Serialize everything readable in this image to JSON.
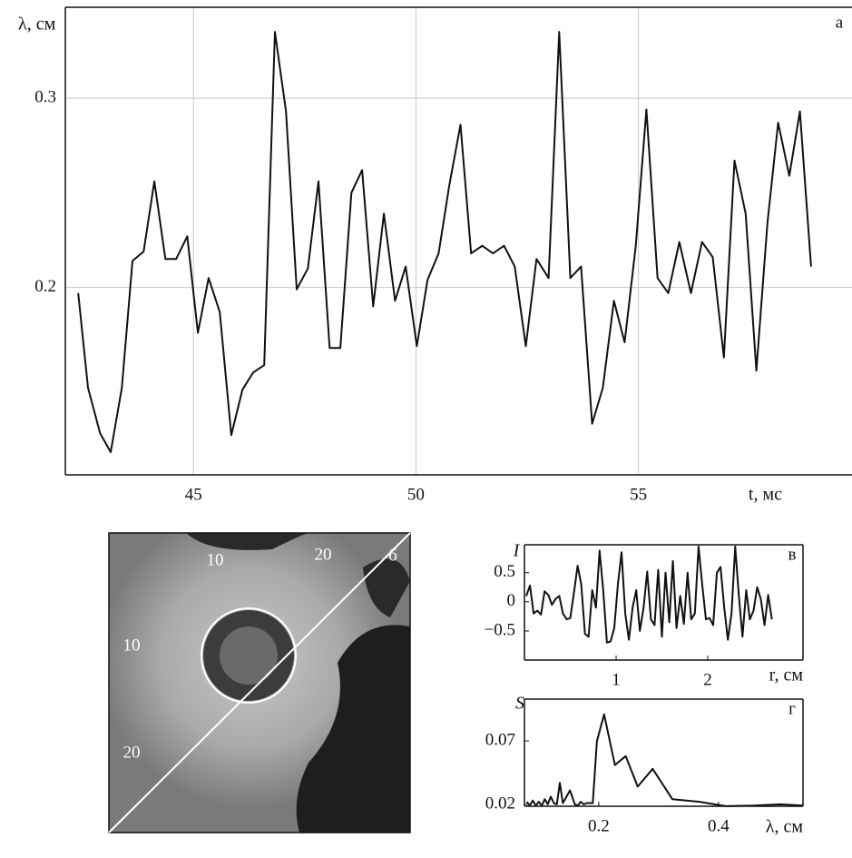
{
  "chart_data": [
    {
      "type": "line",
      "label": "а",
      "ylabel": "λ, см",
      "xlabel": "t, мс",
      "x": [
        42.41,
        42.63,
        42.9,
        43.14,
        43.39,
        43.63,
        43.88,
        44.12,
        44.37,
        44.61,
        44.86,
        45.1,
        45.34,
        45.59,
        45.85,
        46.1,
        46.34,
        46.59,
        46.83,
        47.08,
        47.32,
        47.57,
        47.81,
        48.06,
        48.3,
        48.55,
        48.79,
        49.04,
        49.28,
        49.53,
        49.77,
        50.02,
        50.26,
        50.51,
        50.75,
        51.0,
        51.24,
        51.49,
        51.73,
        51.98,
        52.22,
        52.47,
        52.71,
        52.98,
        53.22,
        53.47,
        53.71,
        53.96,
        54.2,
        54.45,
        54.69,
        54.94,
        55.18,
        55.43,
        55.67,
        55.92,
        56.18,
        56.43,
        56.67,
        56.92,
        57.16,
        57.41,
        57.65,
        57.9,
        58.14,
        58.39,
        58.63,
        58.88
      ],
      "values": [
        0.197,
        0.147,
        0.123,
        0.113,
        0.147,
        0.214,
        0.219,
        0.256,
        0.215,
        0.215,
        0.227,
        0.176,
        0.205,
        0.187,
        0.122,
        0.146,
        0.155,
        0.159,
        0.335,
        0.293,
        0.199,
        0.21,
        0.256,
        0.168,
        0.168,
        0.25,
        0.262,
        0.19,
        0.239,
        0.193,
        0.211,
        0.169,
        0.204,
        0.218,
        0.254,
        0.286,
        0.218,
        0.222,
        0.218,
        0.222,
        0.211,
        0.169,
        0.215,
        0.205,
        0.335,
        0.205,
        0.211,
        0.128,
        0.147,
        0.193,
        0.171,
        0.222,
        0.294,
        0.205,
        0.197,
        0.224,
        0.197,
        0.224,
        0.216,
        0.163,
        0.267,
        0.239,
        0.156,
        0.234,
        0.287,
        0.259,
        0.293,
        0.211
      ],
      "color": "#111111",
      "xlim": [
        42.12,
        59.8
      ],
      "ylim": [
        0.101,
        0.348
      ],
      "xticks": [
        45,
        50,
        55
      ],
      "yticks": [
        0.2,
        0.3
      ],
      "grid": true
    },
    {
      "type": "image",
      "label": "б",
      "top_labels": [
        "10",
        "20"
      ],
      "left_labels": [
        "10",
        "20"
      ]
    },
    {
      "type": "line",
      "label": "в",
      "ylabel": "I",
      "xlabel": "r, см",
      "x": [
        0.02,
        0.06,
        0.1,
        0.14,
        0.18,
        0.22,
        0.26,
        0.3,
        0.34,
        0.38,
        0.42,
        0.46,
        0.5,
        0.54,
        0.58,
        0.62,
        0.66,
        0.7,
        0.74,
        0.78,
        0.82,
        0.86,
        0.9,
        0.94,
        0.98,
        1.02,
        1.06,
        1.1,
        1.14,
        1.18,
        1.22,
        1.26,
        1.3,
        1.34,
        1.38,
        1.42,
        1.46,
        1.5,
        1.54,
        1.58,
        1.62,
        1.66,
        1.7,
        1.74,
        1.78,
        1.82,
        1.86,
        1.9,
        1.94,
        1.98,
        2.02,
        2.06,
        2.1,
        2.14,
        2.18,
        2.22,
        2.26,
        2.3,
        2.34,
        2.38,
        2.42,
        2.46,
        2.5,
        2.54,
        2.58,
        2.62,
        2.66,
        2.7
      ],
      "values": [
        0.1,
        0.28,
        -0.2,
        -0.15,
        -0.22,
        0.18,
        0.12,
        -0.05,
        0.05,
        0.1,
        -0.2,
        -0.3,
        -0.28,
        0.15,
        0.62,
        0.3,
        -0.55,
        -0.6,
        0.2,
        -0.1,
        0.88,
        0.2,
        -0.7,
        -0.68,
        -0.45,
        0.3,
        0.85,
        -0.2,
        -0.65,
        -0.1,
        0.2,
        -0.5,
        -0.1,
        0.52,
        -0.3,
        -0.4,
        0.55,
        -0.6,
        0.5,
        -0.35,
        0.7,
        -0.45,
        0.1,
        -0.38,
        0.5,
        -0.3,
        -0.2,
        0.95,
        0.3,
        -0.3,
        -0.28,
        -0.4,
        0.5,
        0.6,
        -0.1,
        -0.65,
        -0.2,
        0.95,
        0.1,
        -0.6,
        0.2,
        -0.3,
        -0.15,
        0.25,
        0.05,
        -0.4,
        0.12,
        -0.3
      ],
      "color": "#111111",
      "xlim": [
        0,
        3.04
      ],
      "ylim": [
        -1.0,
        0.98
      ],
      "xticks": [
        1,
        2
      ],
      "yticks": [
        0.5,
        0,
        {
          "value": -0.5,
          "label": "−0.5"
        }
      ],
      "grid": false
    },
    {
      "type": "line",
      "label": "г",
      "ylabel": "S",
      "xlabel": "λ, см",
      "x": [
        0.08,
        0.085,
        0.09,
        0.095,
        0.1,
        0.105,
        0.11,
        0.115,
        0.12,
        0.125,
        0.13,
        0.135,
        0.14,
        0.145,
        0.152,
        0.16,
        0.165,
        0.17,
        0.175,
        0.18,
        0.19,
        0.197,
        0.209,
        0.227,
        0.245,
        0.265,
        0.29,
        0.323,
        0.368,
        0.412,
        0.46,
        0.503,
        0.541
      ],
      "values": [
        0.022,
        0.019,
        0.023,
        0.019,
        0.022,
        0.019,
        0.024,
        0.02,
        0.026,
        0.021,
        0.02,
        0.037,
        0.021,
        0.025,
        0.031,
        0.02,
        0.019,
        0.022,
        0.02,
        0.021,
        0.021,
        0.07,
        0.091,
        0.051,
        0.058,
        0.034,
        0.048,
        0.024,
        0.022,
        0.0186,
        0.019,
        0.02,
        0.019
      ],
      "color": "#111111",
      "xlim": [
        0.076,
        0.541
      ],
      "ylim": [
        0.0185,
        0.103
      ],
      "xticks": [
        0.2,
        0.4
      ],
      "yticks": [
        0.07,
        0.02
      ],
      "grid": false
    }
  ]
}
